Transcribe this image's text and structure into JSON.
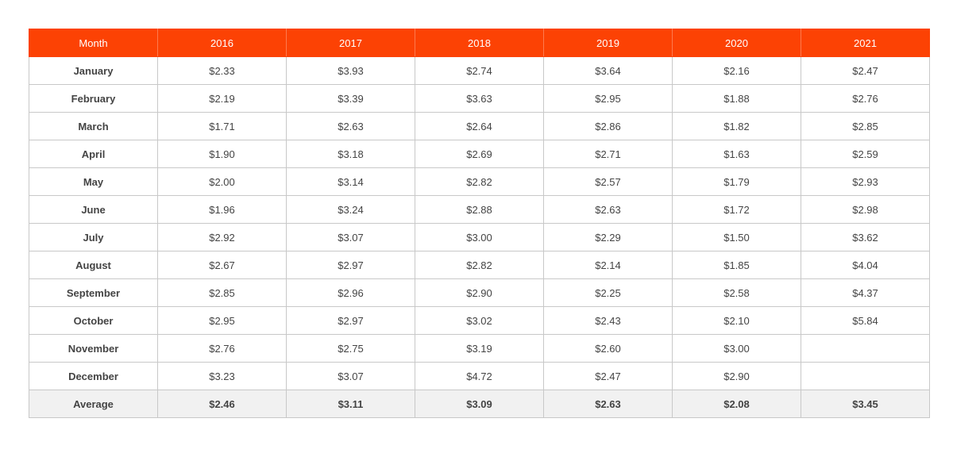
{
  "chart_data": {
    "type": "table",
    "columns": [
      "Month",
      "2016",
      "2017",
      "2018",
      "2019",
      "2020",
      "2021"
    ],
    "rows": [
      [
        "January",
        "$2.33",
        "$3.93",
        "$2.74",
        "$3.64",
        "$2.16",
        "$2.47"
      ],
      [
        "February",
        "$2.19",
        "$3.39",
        "$3.63",
        "$2.95",
        "$1.88",
        "$2.76"
      ],
      [
        "March",
        "$1.71",
        "$2.63",
        "$2.64",
        "$2.86",
        "$1.82",
        "$2.85"
      ],
      [
        "April",
        "$1.90",
        "$3.18",
        "$2.69",
        "$2.71",
        "$1.63",
        "$2.59"
      ],
      [
        "May",
        "$2.00",
        "$3.14",
        "$2.82",
        "$2.57",
        "$1.79",
        "$2.93"
      ],
      [
        "June",
        "$1.96",
        "$3.24",
        "$2.88",
        "$2.63",
        "$1.72",
        "$2.98"
      ],
      [
        "July",
        "$2.92",
        "$3.07",
        "$3.00",
        "$2.29",
        "$1.50",
        "$3.62"
      ],
      [
        "August",
        "$2.67",
        "$2.97",
        "$2.82",
        "$2.14",
        "$1.85",
        "$4.04"
      ],
      [
        "September",
        "$2.85",
        "$2.96",
        "$2.90",
        "$2.25",
        "$2.58",
        "$4.37"
      ],
      [
        "October",
        "$2.95",
        "$2.97",
        "$3.02",
        "$2.43",
        "$2.10",
        "$5.84"
      ],
      [
        "November",
        "$2.76",
        "$2.75",
        "$3.19",
        "$2.60",
        "$3.00",
        ""
      ],
      [
        "December",
        "$3.23",
        "$3.07",
        "$4.72",
        "$2.47",
        "$2.90",
        ""
      ]
    ],
    "average_row": [
      "Average",
      "$2.46",
      "$3.11",
      "$3.09",
      "$2.63",
      "$2.08",
      "$3.45"
    ],
    "header_color": "#fc4204",
    "average_row_color": "#f1f1f1"
  }
}
